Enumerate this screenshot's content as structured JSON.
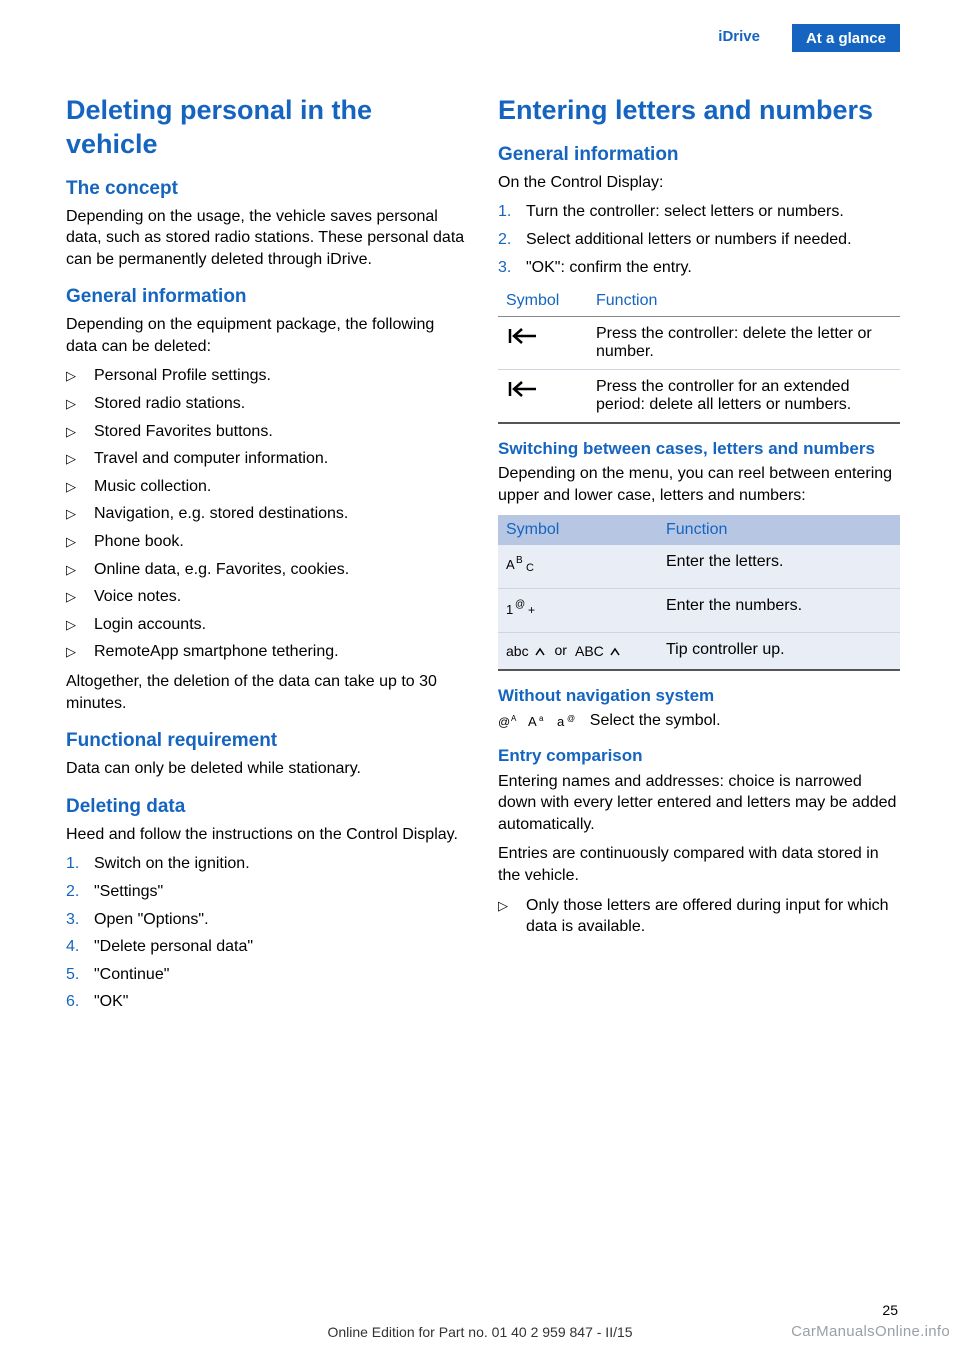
{
  "colors": {
    "accent": "#1565c0",
    "header_bg": "#1565c0",
    "header_fg": "#ffffff",
    "table_head_bg": "#b7c6e3",
    "table_row_bg": "#e9edf5",
    "body_text": "#000000",
    "watermark": "#9aa0a6"
  },
  "header": {
    "section": "iDrive",
    "chapter": "At a glance"
  },
  "left": {
    "h1": "Deleting personal in the vehicle",
    "concept_h": "The concept",
    "concept_p": "Depending on the usage, the vehicle saves personal data, such as stored radio stations. These personal data can be permanently de­leted through iDrive.",
    "geninfo_h": "General information",
    "geninfo_p": "Depending on the equipment package, the fol­lowing data can be deleted:",
    "bullets": [
      "Personal Profile settings.",
      "Stored radio stations.",
      "Stored Favorites buttons.",
      "Travel and computer information.",
      "Music collection.",
      "Navigation, e.g. stored destinations.",
      "Phone book.",
      "Online data, e.g. Favorites, cookies.",
      "Voice notes.",
      "Login accounts.",
      "RemoteApp smartphone tethering."
    ],
    "after_bullets": "Altogether, the deletion of the data can take up to 30 minutes.",
    "funcreq_h": "Functional requirement",
    "funcreq_p": "Data can only be deleted while stationary.",
    "deldata_h": "Deleting data",
    "deldata_p": "Heed and follow the instructions on the Con­trol Display.",
    "steps": [
      "Switch on the ignition.",
      "\"Settings\"",
      "Open \"Options\".",
      "\"Delete personal data\"",
      "\"Continue\"",
      "\"OK\""
    ]
  },
  "right": {
    "h1": "Entering letters and numbers",
    "geninfo_h": "General information",
    "geninfo_p": "On the Control Display:",
    "steps": [
      "Turn the controller: select letters or num­bers.",
      "Select additional letters or numbers if needed.",
      "\"OK\": confirm the entry."
    ],
    "table1": {
      "head_symbol": "Symbol",
      "head_function": "Function",
      "rows": [
        {
          "icon": "back-arrow",
          "func": "Press the controller: delete the let­ter or number."
        },
        {
          "icon": "back-arrow",
          "func": "Press the controller for an extended period: delete all letters or numbers."
        }
      ]
    },
    "switch_h": "Switching between cases, letters and numbers",
    "switch_p": "Depending on the menu, you can reel between entering upper and lower case, letters and numbers:",
    "table2": {
      "head_symbol": "Symbol",
      "head_function": "Function",
      "rows": [
        {
          "icon": "abc-upper",
          "func": "Enter the letters."
        },
        {
          "icon": "one-at-plus",
          "func": "Enter the numbers."
        },
        {
          "icon": "abc-or-ABC",
          "or": "or",
          "func": "Tip controller up."
        }
      ]
    },
    "withoutnav_h": "Without navigation system",
    "withoutnav_p": "Select the symbol.",
    "entrycomp_h": "Entry comparison",
    "entrycomp_p1": "Entering names and addresses: choice is nar­rowed down with every letter entered and let­ters may be added automatically.",
    "entrycomp_p2": "Entries are continuously compared with data stored in the vehicle.",
    "entrycomp_bullet": "Only those letters are offered during input for which data is available."
  },
  "footer": {
    "page": "25",
    "line": "Online Edition for Part no. 01 40 2 959 847 - II/15",
    "watermark": "CarManualsOnline.info"
  }
}
